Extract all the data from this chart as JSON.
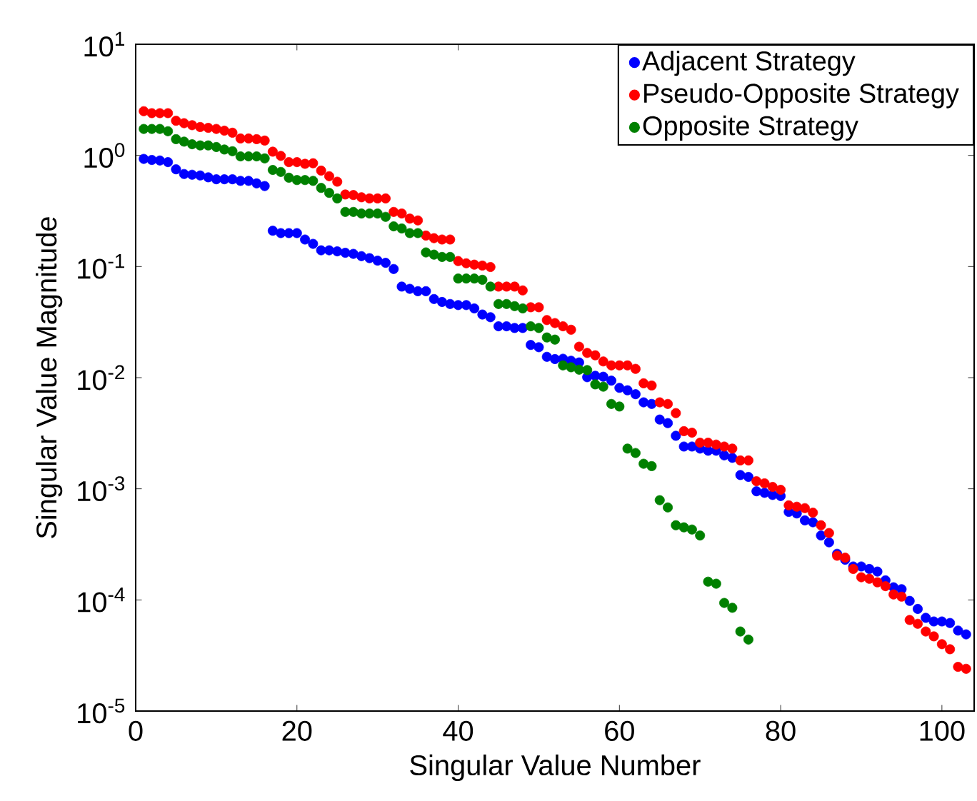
{
  "chart_data": {
    "type": "scatter",
    "xlabel": "Singular Value Number",
    "ylabel": "Singular Value Magnitude",
    "x": [
      1,
      2,
      3,
      4,
      5,
      6,
      7,
      8,
      9,
      10,
      11,
      12,
      13,
      14,
      15,
      16,
      17,
      18,
      19,
      20,
      21,
      22,
      23,
      24,
      25,
      26,
      27,
      28,
      29,
      30,
      31,
      32,
      33,
      34,
      35,
      36,
      37,
      38,
      39,
      40,
      41,
      42,
      43,
      44,
      45,
      46,
      47,
      48,
      49,
      50,
      51,
      52,
      53,
      54,
      55,
      56,
      57,
      58,
      59,
      60,
      61,
      62,
      63,
      64,
      65,
      66,
      67,
      68,
      69,
      70,
      71,
      72,
      73,
      74,
      75,
      76,
      77,
      78,
      79,
      80,
      81,
      82,
      83,
      84,
      85,
      86,
      87,
      88,
      89,
      90,
      91,
      92,
      93,
      94,
      95,
      96,
      97,
      98,
      99,
      100,
      101,
      102,
      103
    ],
    "series": [
      {
        "name": "Adjacent Strategy",
        "color": "#0000ff",
        "values": [
          0.93,
          0.91,
          0.9,
          0.87,
          0.75,
          0.68,
          0.67,
          0.66,
          0.635,
          0.61,
          0.61,
          0.61,
          0.59,
          0.59,
          0.56,
          0.53,
          0.21,
          0.2,
          0.2,
          0.2,
          0.175,
          0.16,
          0.14,
          0.14,
          0.137,
          0.133,
          0.13,
          0.124,
          0.119,
          0.113,
          0.108,
          0.095,
          0.066,
          0.063,
          0.06,
          0.06,
          0.051,
          0.048,
          0.046,
          0.045,
          0.045,
          0.042,
          0.037,
          0.035,
          0.029,
          0.029,
          0.028,
          0.028,
          0.0197,
          0.0188,
          0.0154,
          0.0147,
          0.0148,
          0.0142,
          0.0137,
          0.0101,
          0.0104,
          0.0102,
          0.0094,
          0.0081,
          0.0077,
          0.0071,
          0.006,
          0.0058,
          0.0042,
          0.0039,
          0.003,
          0.0024,
          0.0024,
          0.0023,
          0.0022,
          0.0022,
          0.002,
          0.0019,
          0.00133,
          0.00128,
          0.00095,
          0.00092,
          0.00088,
          0.00086,
          0.00062,
          0.0006,
          0.00052,
          0.0005,
          0.00038,
          0.00033,
          0.00026,
          0.00023,
          0.0002,
          0.0002,
          0.00019,
          0.00018,
          0.00015,
          0.00013,
          0.000125,
          9.8e-05,
          8.3e-05,
          6.9e-05,
          6.4e-05,
          6.4e-05,
          6.2e-05,
          5.3e-05,
          4.9e-05
        ]
      },
      {
        "name": "Pseudo-Opposite Strategy",
        "color": "#ff0000",
        "values": [
          2.5,
          2.4,
          2.4,
          2.4,
          2.05,
          1.95,
          1.87,
          1.8,
          1.77,
          1.73,
          1.67,
          1.6,
          1.42,
          1.42,
          1.4,
          1.36,
          1.08,
          0.99,
          0.87,
          0.87,
          0.84,
          0.85,
          0.73,
          0.65,
          0.58,
          0.445,
          0.44,
          0.42,
          0.41,
          0.41,
          0.41,
          0.31,
          0.3,
          0.27,
          0.26,
          0.19,
          0.18,
          0.175,
          0.175,
          0.112,
          0.107,
          0.104,
          0.102,
          0.099,
          0.066,
          0.066,
          0.066,
          0.061,
          0.043,
          0.043,
          0.033,
          0.031,
          0.029,
          0.027,
          0.019,
          0.0167,
          0.0159,
          0.014,
          0.0129,
          0.0129,
          0.0129,
          0.012,
          0.0089,
          0.0085,
          0.006,
          0.0058,
          0.0048,
          0.0033,
          0.0032,
          0.0026,
          0.0026,
          0.0025,
          0.0024,
          0.0023,
          0.0018,
          0.0018,
          0.00117,
          0.00112,
          0.00104,
          0.00098,
          0.00071,
          0.00069,
          0.00067,
          0.00061,
          0.00047,
          0.0004,
          0.00025,
          0.00024,
          0.00019,
          0.00016,
          0.000155,
          0.000144,
          0.000133,
          0.000112,
          0.000107,
          6.6e-05,
          6.1e-05,
          5.2e-05,
          4.7e-05,
          4e-05,
          3.6e-05,
          2.5e-05,
          2.4e-05
        ]
      },
      {
        "name": "Opposite Strategy",
        "color": "#008000",
        "x": [
          1,
          2,
          3,
          4,
          5,
          6,
          7,
          8,
          9,
          10,
          11,
          12,
          13,
          14,
          15,
          16,
          17,
          18,
          19,
          20,
          21,
          22,
          23,
          24,
          25,
          26,
          27,
          28,
          29,
          30,
          31,
          32,
          33,
          34,
          35,
          36,
          37,
          38,
          39,
          40,
          41,
          42,
          43,
          44,
          45,
          46,
          47,
          48,
          49,
          50,
          51,
          52,
          53,
          54,
          55,
          56,
          57,
          58,
          59,
          60,
          61,
          62,
          63,
          64,
          65,
          66,
          67,
          68,
          69,
          70,
          71,
          72,
          73,
          74,
          75,
          76
        ],
        "values": [
          1.73,
          1.73,
          1.73,
          1.65,
          1.4,
          1.33,
          1.26,
          1.23,
          1.23,
          1.19,
          1.13,
          1.09,
          0.98,
          0.98,
          0.98,
          0.94,
          0.74,
          0.71,
          0.63,
          0.6,
          0.6,
          0.59,
          0.51,
          0.46,
          0.41,
          0.31,
          0.31,
          0.3,
          0.3,
          0.3,
          0.28,
          0.23,
          0.22,
          0.2,
          0.2,
          0.134,
          0.128,
          0.122,
          0.122,
          0.078,
          0.078,
          0.078,
          0.076,
          0.066,
          0.046,
          0.046,
          0.044,
          0.042,
          0.029,
          0.028,
          0.023,
          0.022,
          0.0129,
          0.0124,
          0.0118,
          0.0117,
          0.0087,
          0.0083,
          0.0058,
          0.0055,
          0.0023,
          0.0021,
          0.00168,
          0.0016,
          0.00079,
          0.00068,
          0.00047,
          0.00045,
          0.00043,
          0.00038,
          0.000146,
          0.00014,
          9.4e-05,
          8.5e-05,
          5.2e-05,
          4.4e-05
        ]
      }
    ],
    "xlim": [
      0,
      104
    ],
    "xticks": [
      0,
      20,
      40,
      60,
      80,
      100
    ],
    "ylim": [
      1e-05,
      10
    ],
    "yticks": [
      {
        "value": 1e-05,
        "label": "10$^{-5}$"
      },
      {
        "value": 0.0001,
        "label": "10$^{-4}$"
      },
      {
        "value": 0.001,
        "label": "10$^{-3}$"
      },
      {
        "value": 0.01,
        "label": "10$^{-2}$"
      },
      {
        "value": 0.1,
        "label": "10$^{-1}$"
      },
      {
        "value": 1,
        "label": "10$^{0}$"
      },
      {
        "value": 10,
        "label": "10$^{1}$"
      }
    ],
    "log": "y",
    "grid": false,
    "legend": "top right",
    "marker": "circle"
  }
}
